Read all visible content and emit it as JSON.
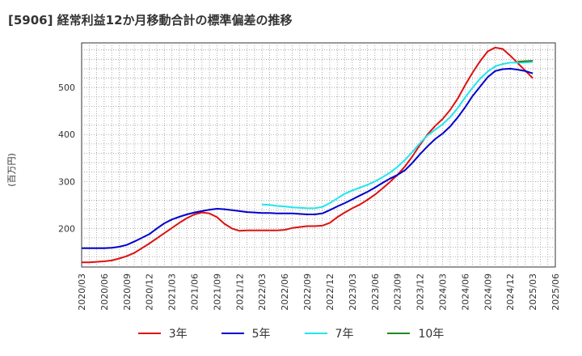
{
  "chart_data": {
    "type": "line",
    "title": "[5906]  経常利益12か月移動合計の標準偏差の推移",
    "ylabel": "(百万円)",
    "xlabel": "",
    "ylim": [
      118,
      595
    ],
    "yticks": [
      200,
      300,
      400,
      500
    ],
    "grid": true,
    "legend_position": "bottom",
    "x_ticks": [
      "2020/03",
      "2020/06",
      "2020/09",
      "2020/12",
      "2021/03",
      "2021/06",
      "2021/09",
      "2021/12",
      "2022/03",
      "2022/06",
      "2022/09",
      "2022/12",
      "2023/03",
      "2023/06",
      "2023/09",
      "2023/12",
      "2024/03",
      "2024/06",
      "2024/09",
      "2024/12",
      "2025/03",
      "2025/06"
    ],
    "x": [
      "2020/03",
      "2020/04",
      "2020/05",
      "2020/06",
      "2020/07",
      "2020/08",
      "2020/09",
      "2020/10",
      "2020/11",
      "2020/12",
      "2021/01",
      "2021/02",
      "2021/03",
      "2021/04",
      "2021/05",
      "2021/06",
      "2021/07",
      "2021/08",
      "2021/09",
      "2021/10",
      "2021/11",
      "2021/12",
      "2022/01",
      "2022/02",
      "2022/03",
      "2022/04",
      "2022/05",
      "2022/06",
      "2022/07",
      "2022/08",
      "2022/09",
      "2022/10",
      "2022/11",
      "2022/12",
      "2023/01",
      "2023/02",
      "2023/03",
      "2023/04",
      "2023/05",
      "2023/06",
      "2023/07",
      "2023/08",
      "2023/09",
      "2023/10",
      "2023/11",
      "2023/12",
      "2024/01",
      "2024/02",
      "2024/03",
      "2024/04",
      "2024/05",
      "2024/06",
      "2024/07",
      "2024/08",
      "2024/09",
      "2024/10",
      "2024/11",
      "2024/12",
      "2025/01",
      "2025/02",
      "2025/03"
    ],
    "series": [
      {
        "name": "3年",
        "color": "#dd1111",
        "values": [
          128,
          128,
          129,
          130,
          132,
          136,
          141,
          148,
          158,
          168,
          179,
          190,
          201,
          212,
          222,
          230,
          234,
          232,
          224,
          210,
          200,
          195,
          196,
          196,
          196,
          196,
          196,
          197,
          201,
          203,
          205,
          205,
          206,
          212,
          224,
          234,
          243,
          251,
          261,
          272,
          285,
          299,
          314,
          332,
          354,
          378,
          400,
          418,
          433,
          452,
          476,
          505,
          532,
          556,
          577,
          585,
          582,
          568,
          552,
          536,
          520
        ]
      },
      {
        "name": "5年",
        "color": "#0000cc",
        "values": [
          158,
          158,
          158,
          158,
          159,
          161,
          165,
          172,
          180,
          188,
          200,
          211,
          219,
          225,
          230,
          234,
          237,
          240,
          242,
          241,
          239,
          237,
          235,
          234,
          233,
          233,
          232,
          232,
          232,
          231,
          230,
          230,
          232,
          239,
          247,
          254,
          262,
          270,
          278,
          287,
          297,
          306,
          314,
          324,
          340,
          358,
          375,
          390,
          402,
          417,
          436,
          458,
          482,
          502,
          522,
          535,
          539,
          540,
          538,
          535,
          530
        ]
      },
      {
        "name": "7年",
        "color": "#22e5ee",
        "values": [
          null,
          null,
          null,
          null,
          null,
          null,
          null,
          null,
          null,
          null,
          null,
          null,
          null,
          null,
          null,
          null,
          null,
          null,
          null,
          null,
          null,
          null,
          null,
          null,
          251,
          250,
          248,
          247,
          245,
          244,
          243,
          243,
          246,
          254,
          264,
          274,
          281,
          287,
          293,
          300,
          309,
          319,
          331,
          346,
          363,
          382,
          398,
          410,
          422,
          437,
          456,
          479,
          500,
          519,
          534,
          545,
          550,
          553,
          553,
          553,
          555
        ]
      },
      {
        "name": "10年",
        "color": "#228822",
        "values": [
          null,
          null,
          null,
          null,
          null,
          null,
          null,
          null,
          null,
          null,
          null,
          null,
          null,
          null,
          null,
          null,
          null,
          null,
          null,
          null,
          null,
          null,
          null,
          null,
          null,
          null,
          null,
          null,
          null,
          null,
          null,
          null,
          null,
          null,
          null,
          null,
          null,
          null,
          null,
          null,
          null,
          null,
          null,
          null,
          null,
          null,
          null,
          null,
          null,
          null,
          null,
          null,
          null,
          null,
          null,
          null,
          null,
          null,
          555,
          556,
          557
        ]
      }
    ]
  }
}
